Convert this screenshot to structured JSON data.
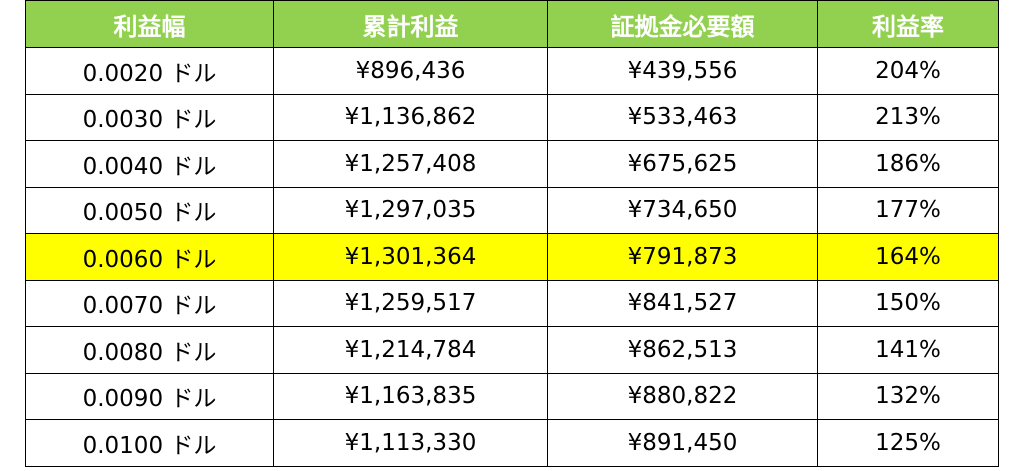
{
  "colors": {
    "header_bg": "#92d050",
    "header_text": "#ffffff",
    "highlight_bg": "#ffff00",
    "border": "#000000"
  },
  "table": {
    "headers": [
      "利益幅",
      "累計利益",
      "証拠金必要額",
      "利益率"
    ],
    "highlight_row_index": 4,
    "rows": [
      [
        "0.0020 ドル",
        "¥896,436",
        "¥439,556",
        "204%"
      ],
      [
        "0.0030 ドル",
        "¥1,136,862",
        "¥533,463",
        "213%"
      ],
      [
        "0.0040 ドル",
        "¥1,257,408",
        "¥675,625",
        "186%"
      ],
      [
        "0.0050 ドル",
        "¥1,297,035",
        "¥734,650",
        "177%"
      ],
      [
        "0.0060 ドル",
        "¥1,301,364",
        "¥791,873",
        "164%"
      ],
      [
        "0.0070 ドル",
        "¥1,259,517",
        "¥841,527",
        "150%"
      ],
      [
        "0.0080 ドル",
        "¥1,214,784",
        "¥862,513",
        "141%"
      ],
      [
        "0.0090 ドル",
        "¥1,163,835",
        "¥880,822",
        "132%"
      ],
      [
        "0.0100 ドル",
        "¥1,113,330",
        "¥891,450",
        "125%"
      ]
    ]
  }
}
